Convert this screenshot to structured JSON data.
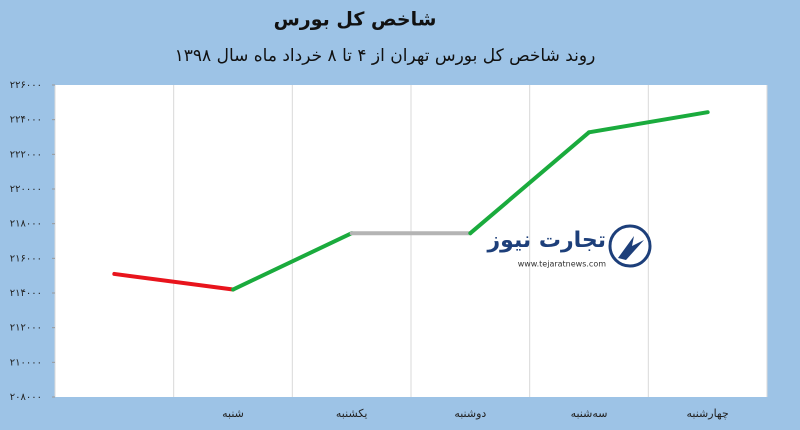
{
  "chart_data": {
    "type": "line",
    "title": "شاخص کل بورس",
    "subtitle": "روند شاخص کل بورس تهران از ۴ تا ۸ خرداد ماه سال ۱۳۹۸",
    "categories": [
      null,
      "شنبه",
      "یکشنبه",
      "دوشنبه",
      "سه‌شنبه",
      "چهارشنبه"
    ],
    "values": [
      215100,
      214200,
      217450,
      217450,
      223270,
      224430
    ],
    "up_color": "#1aab3d",
    "down_color": "#e8141c",
    "flat_color": "#b4b4b4",
    "ylim": [
      208000,
      226000
    ],
    "yticks": [
      {
        "value": 208000,
        "label": "۲۰۸۰۰۰"
      },
      {
        "value": 210000,
        "label": "۲۱۰۰۰۰"
      },
      {
        "value": 212000,
        "label": "۲۱۲۰۰۰"
      },
      {
        "value": 214000,
        "label": "۲۱۴۰۰۰"
      },
      {
        "value": 216000,
        "label": "۲۱۶۰۰۰"
      },
      {
        "value": 218000,
        "label": "۲۱۸۰۰۰"
      },
      {
        "value": 220000,
        "label": "۲۲۰۰۰۰"
      },
      {
        "value": 222000,
        "label": "۲۲۲۰۰۰"
      },
      {
        "value": 224000,
        "label": "۲۲۴۰۰۰"
      },
      {
        "value": 226000,
        "label": "۲۲۶۰۰۰"
      }
    ]
  },
  "watermark": {
    "name": "تجارت نیوز",
    "url": "www.tejaratnews.com"
  }
}
